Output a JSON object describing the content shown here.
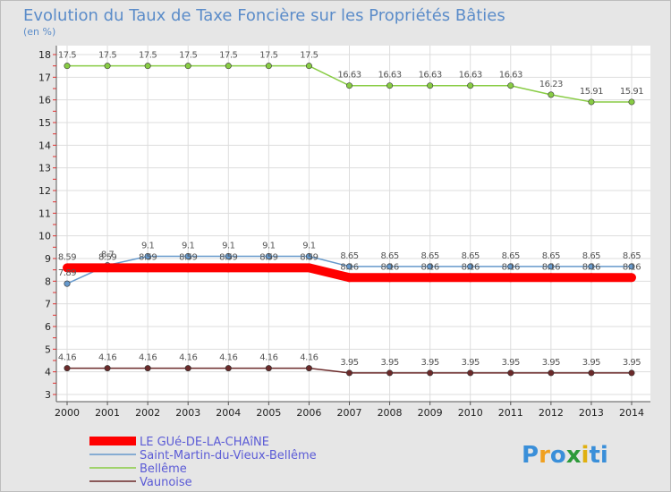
{
  "chart_data": {
    "type": "line",
    "title": "Evolution du Taux de Taxe Foncière sur les Propriétés Bâties",
    "ylabel": "(en %)",
    "xlabel": "",
    "categories": [
      "2000",
      "2001",
      "2002",
      "2003",
      "2004",
      "2005",
      "2006",
      "2007",
      "2008",
      "2009",
      "2010",
      "2011",
      "2012",
      "2013",
      "2014"
    ],
    "ylim": [
      3,
      18
    ],
    "yticks": [
      3,
      4,
      5,
      6,
      7,
      8,
      9,
      10,
      11,
      12,
      13,
      14,
      15,
      16,
      17,
      18
    ],
    "series": [
      {
        "name": "LE GUé-DE-LA-CHAîNE",
        "color": "#ff0000",
        "values": [
          8.59,
          8.59,
          8.59,
          8.59,
          8.59,
          8.59,
          8.59,
          8.16,
          8.16,
          8.16,
          8.16,
          8.16,
          8.16,
          8.16,
          8.16
        ],
        "labels": [
          "8.59",
          "8.59",
          "8.59",
          "8.59",
          "8.59",
          "8.59",
          "8.59",
          "8.16",
          "8.16",
          "8.16",
          "8.16",
          "8.16",
          "8.16",
          "8.16",
          "8.16"
        ]
      },
      {
        "name": "Saint-Martin-du-Vieux-Bellême",
        "color": "#6699cc",
        "values": [
          7.89,
          8.7,
          9.1,
          9.1,
          9.1,
          9.1,
          9.1,
          8.65,
          8.65,
          8.65,
          8.65,
          8.65,
          8.65,
          8.65,
          8.65
        ],
        "labels": [
          "7.89",
          "8.7",
          "9.1",
          "9.1",
          "9.1",
          "9.1",
          "9.1",
          "8.65",
          "8.65",
          "8.65",
          "8.65",
          "8.65",
          "8.65",
          "8.65",
          "8.65"
        ]
      },
      {
        "name": "Bellême",
        "color": "#88cc44",
        "values": [
          17.5,
          17.5,
          17.5,
          17.5,
          17.5,
          17.5,
          17.5,
          16.63,
          16.63,
          16.63,
          16.63,
          16.63,
          16.23,
          15.91,
          15.91
        ],
        "labels": [
          "17.5",
          "17.5",
          "17.5",
          "17.5",
          "17.5",
          "17.5",
          "17.5",
          "16.63",
          "16.63",
          "16.63",
          "16.63",
          "16.63",
          "16.23",
          "15.91",
          "15.91"
        ]
      },
      {
        "name": "Vaunoise",
        "color": "#6b2a2a",
        "values": [
          4.16,
          4.16,
          4.16,
          4.16,
          4.16,
          4.16,
          4.16,
          3.95,
          3.95,
          3.95,
          3.95,
          3.95,
          3.95,
          3.95,
          3.95
        ],
        "labels": [
          "4.16",
          "4.16",
          "4.16",
          "4.16",
          "4.16",
          "4.16",
          "4.16",
          "3.95",
          "3.95",
          "3.95",
          "3.95",
          "3.95",
          "3.95",
          "3.95",
          "3.95"
        ]
      }
    ],
    "legend_position": "bottom-left"
  },
  "logo": {
    "letters": [
      "P",
      "r",
      "o",
      "x",
      "i",
      "t",
      "i"
    ],
    "colors": [
      "#3a8fd9",
      "#f0a020",
      "#3a8fd9",
      "#2d9a3a",
      "#e0b010",
      "#3a8fd9",
      "#3a8fd9"
    ]
  }
}
